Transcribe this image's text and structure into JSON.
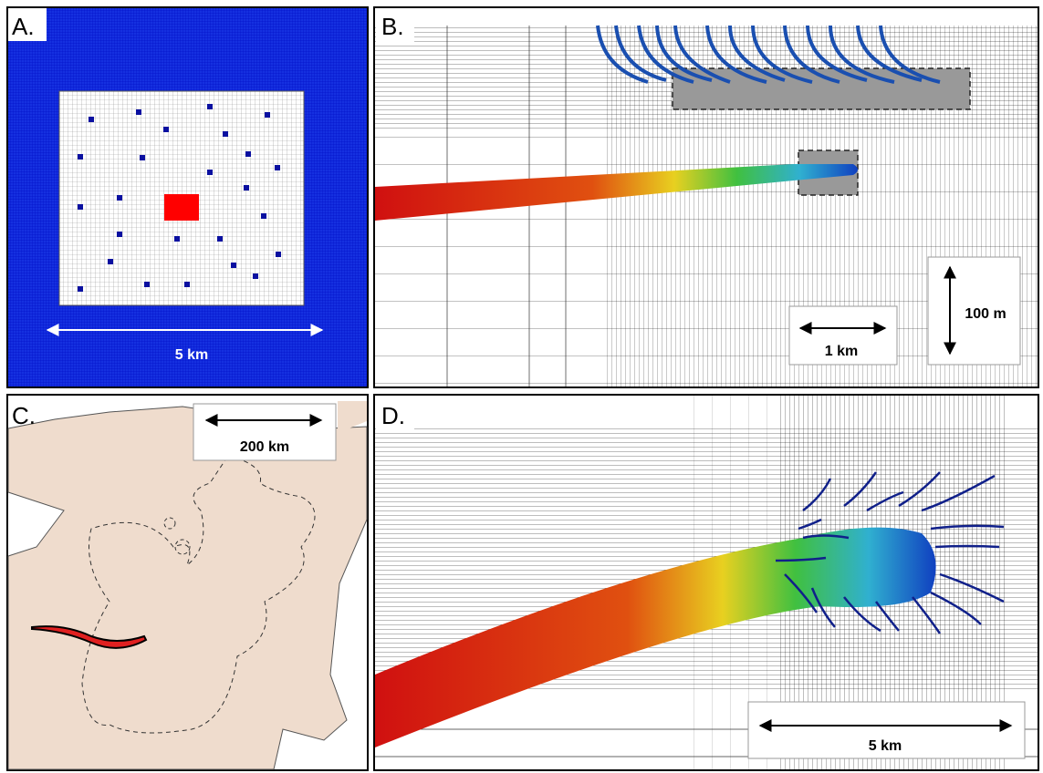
{
  "panels": [
    {
      "label": "A.",
      "scale_bars": [
        "5 km"
      ]
    },
    {
      "label": "B.",
      "scale_bars": [
        "1 km",
        "100 m"
      ]
    },
    {
      "label": "C.",
      "scale_bars": [
        "200 km"
      ]
    },
    {
      "label": "D.",
      "scale_bars": [
        "5 km"
      ]
    }
  ]
}
